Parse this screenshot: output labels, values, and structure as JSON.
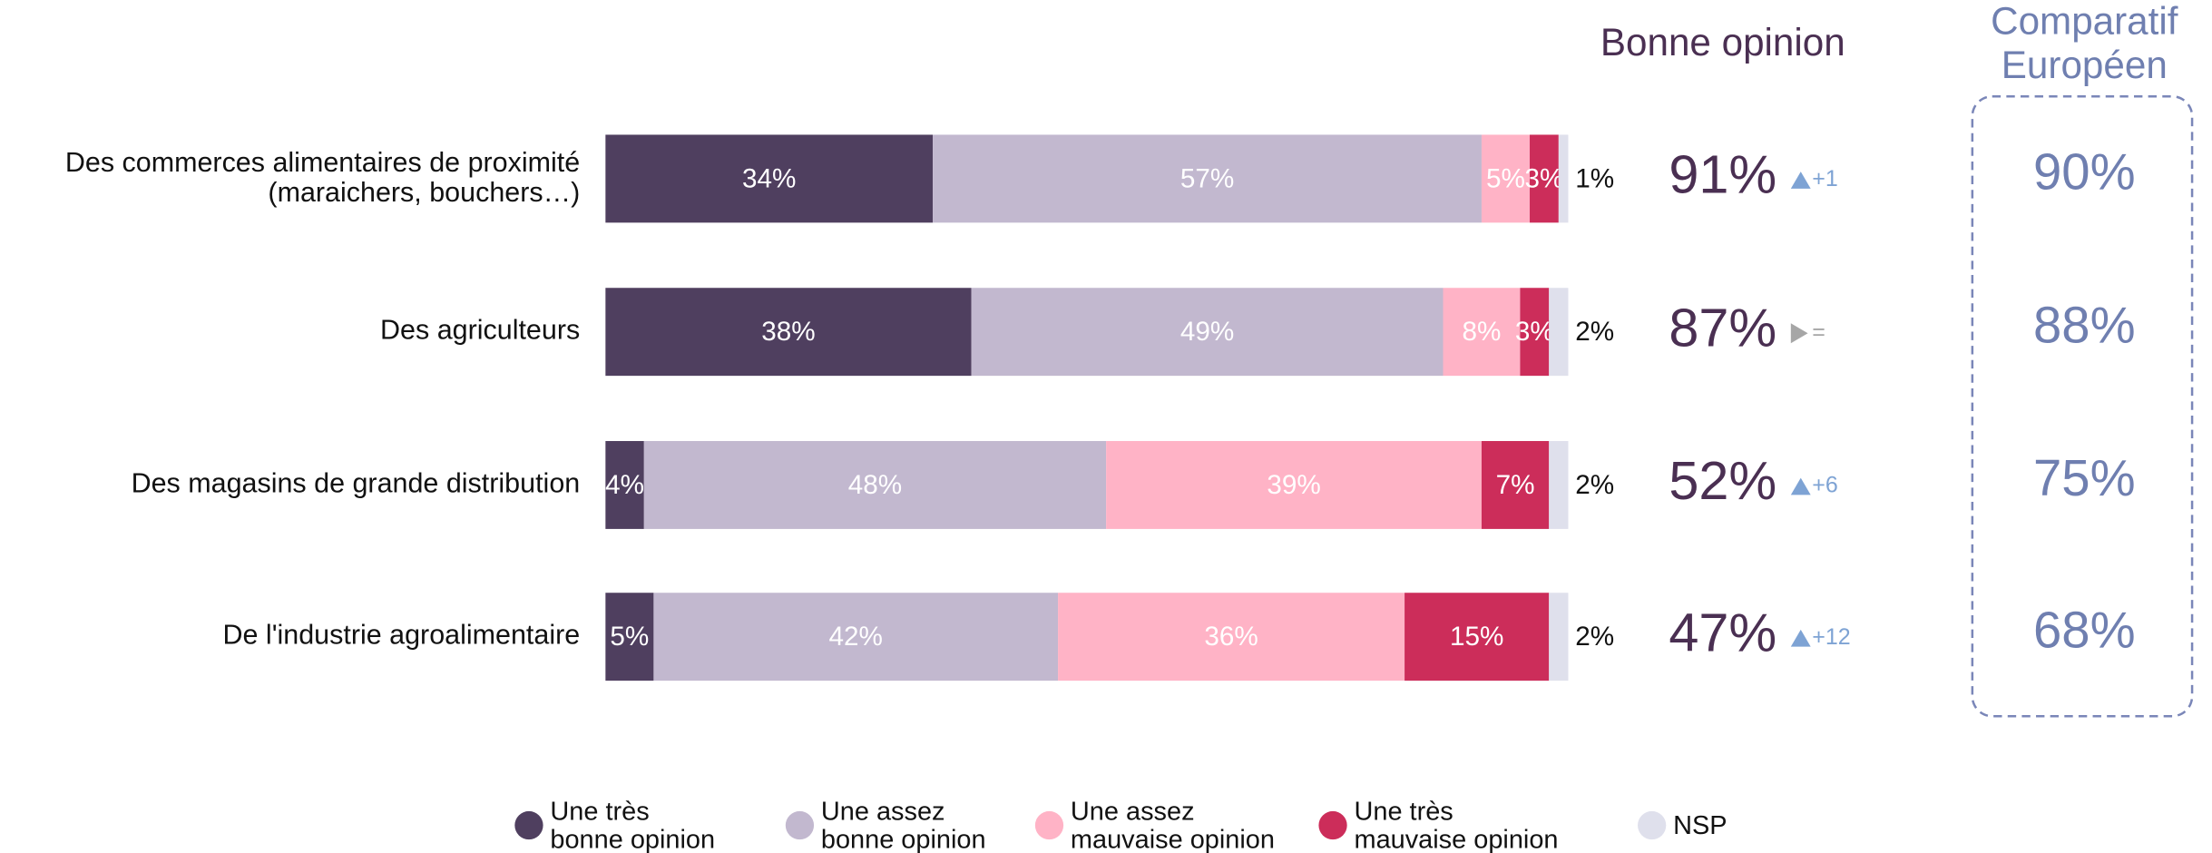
{
  "chart_data": {
    "type": "bar",
    "orientation": "horizontal",
    "stacked": true,
    "categories": [
      "Des commerces alimentaires de proximité\n(maraichers, bouchers…)",
      "Des agriculteurs",
      "Des magasins de grande distribution",
      "De l'industrie agroalimentaire"
    ],
    "xlim": [
      0,
      100
    ],
    "legend": "bottom",
    "series": [
      {
        "name": "Une très\nbonne opinion",
        "color": "#4f3f5f",
        "values": [
          34,
          38,
          4,
          5
        ],
        "value_labels": [
          "34%",
          "38%",
          "4%",
          "5%"
        ]
      },
      {
        "name": "Une assez\nbonne opinion",
        "color": "#c2b8cf",
        "values": [
          57,
          49,
          48,
          42
        ],
        "value_labels": [
          "57%",
          "49%",
          "48%",
          "42%"
        ]
      },
      {
        "name": "Une assez\nmauvaise opinion",
        "color": "#ffb3c6",
        "values": [
          5,
          8,
          39,
          36
        ],
        "value_labels": [
          "5%",
          "8%",
          "39%",
          "36%"
        ]
      },
      {
        "name": "Une très\nmauvaise opinion",
        "color": "#cc2d5a",
        "values": [
          3,
          3,
          7,
          15
        ],
        "value_labels": [
          "3%",
          "3%",
          "7%",
          "15%"
        ]
      },
      {
        "name": "NSP",
        "color": "#dfe0ec",
        "values": [
          1,
          2,
          2,
          2
        ],
        "value_labels": [
          "1%",
          "2%",
          "2%",
          "2%"
        ],
        "label_position": "outside"
      }
    ],
    "bonne_opinion": {
      "title": "Bonne opinion",
      "values": [
        "91%",
        "87%",
        "52%",
        "47%"
      ],
      "changes": [
        {
          "label": "+1",
          "trend": "up"
        },
        {
          "label": "=",
          "trend": "flat"
        },
        {
          "label": "+6",
          "trend": "up"
        },
        {
          "label": "+12",
          "trend": "up"
        }
      ]
    },
    "comparatif": {
      "title": "Comparatif\nEuropéen",
      "values": [
        "90%",
        "88%",
        "75%",
        "68%"
      ]
    }
  }
}
